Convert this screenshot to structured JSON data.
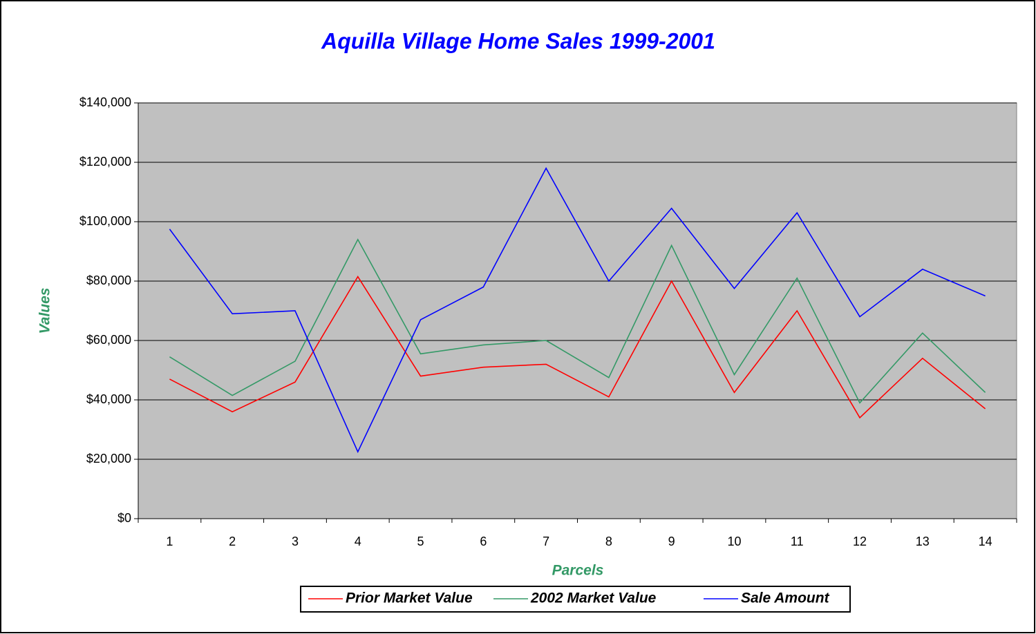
{
  "chart_data": {
    "type": "line",
    "title": "Aquilla Village Home Sales 1999-2001",
    "x_label": "Parcels",
    "y_label": "Values",
    "categories": [
      "1",
      "2",
      "3",
      "4",
      "5",
      "6",
      "7",
      "8",
      "9",
      "10",
      "11",
      "12",
      "13",
      "14"
    ],
    "series": [
      {
        "name": "Prior Market Value",
        "color": "#ff0000",
        "values": [
          47000,
          36000,
          46000,
          81500,
          48000,
          51000,
          52000,
          41000,
          80000,
          42500,
          70000,
          34000,
          54000,
          37000
        ]
      },
      {
        "name": "2002 Market Value",
        "color": "#339966",
        "values": [
          54500,
          41500,
          53000,
          94000,
          55500,
          58500,
          60000,
          47500,
          92000,
          48500,
          81000,
          39000,
          62500,
          42500
        ]
      },
      {
        "name": "Sale Amount",
        "color": "#0000ff",
        "values": [
          97500,
          69000,
          70000,
          22500,
          67000,
          78000,
          118000,
          80000,
          104500,
          77500,
          103000,
          68000,
          84000,
          75000
        ]
      }
    ],
    "ylim": [
      0,
      140000
    ],
    "yticks": [
      {
        "value": 0,
        "label": "$0"
      },
      {
        "value": 20000,
        "label": "$20,000"
      },
      {
        "value": 40000,
        "label": "$40,000"
      },
      {
        "value": 60000,
        "label": "$60,000"
      },
      {
        "value": 80000,
        "label": "$80,000"
      },
      {
        "value": 100000,
        "label": "$100,000"
      },
      {
        "value": 120000,
        "label": "$120,000"
      },
      {
        "value": 140000,
        "label": "$140,000"
      }
    ],
    "grid": true,
    "legend": "bottom"
  }
}
